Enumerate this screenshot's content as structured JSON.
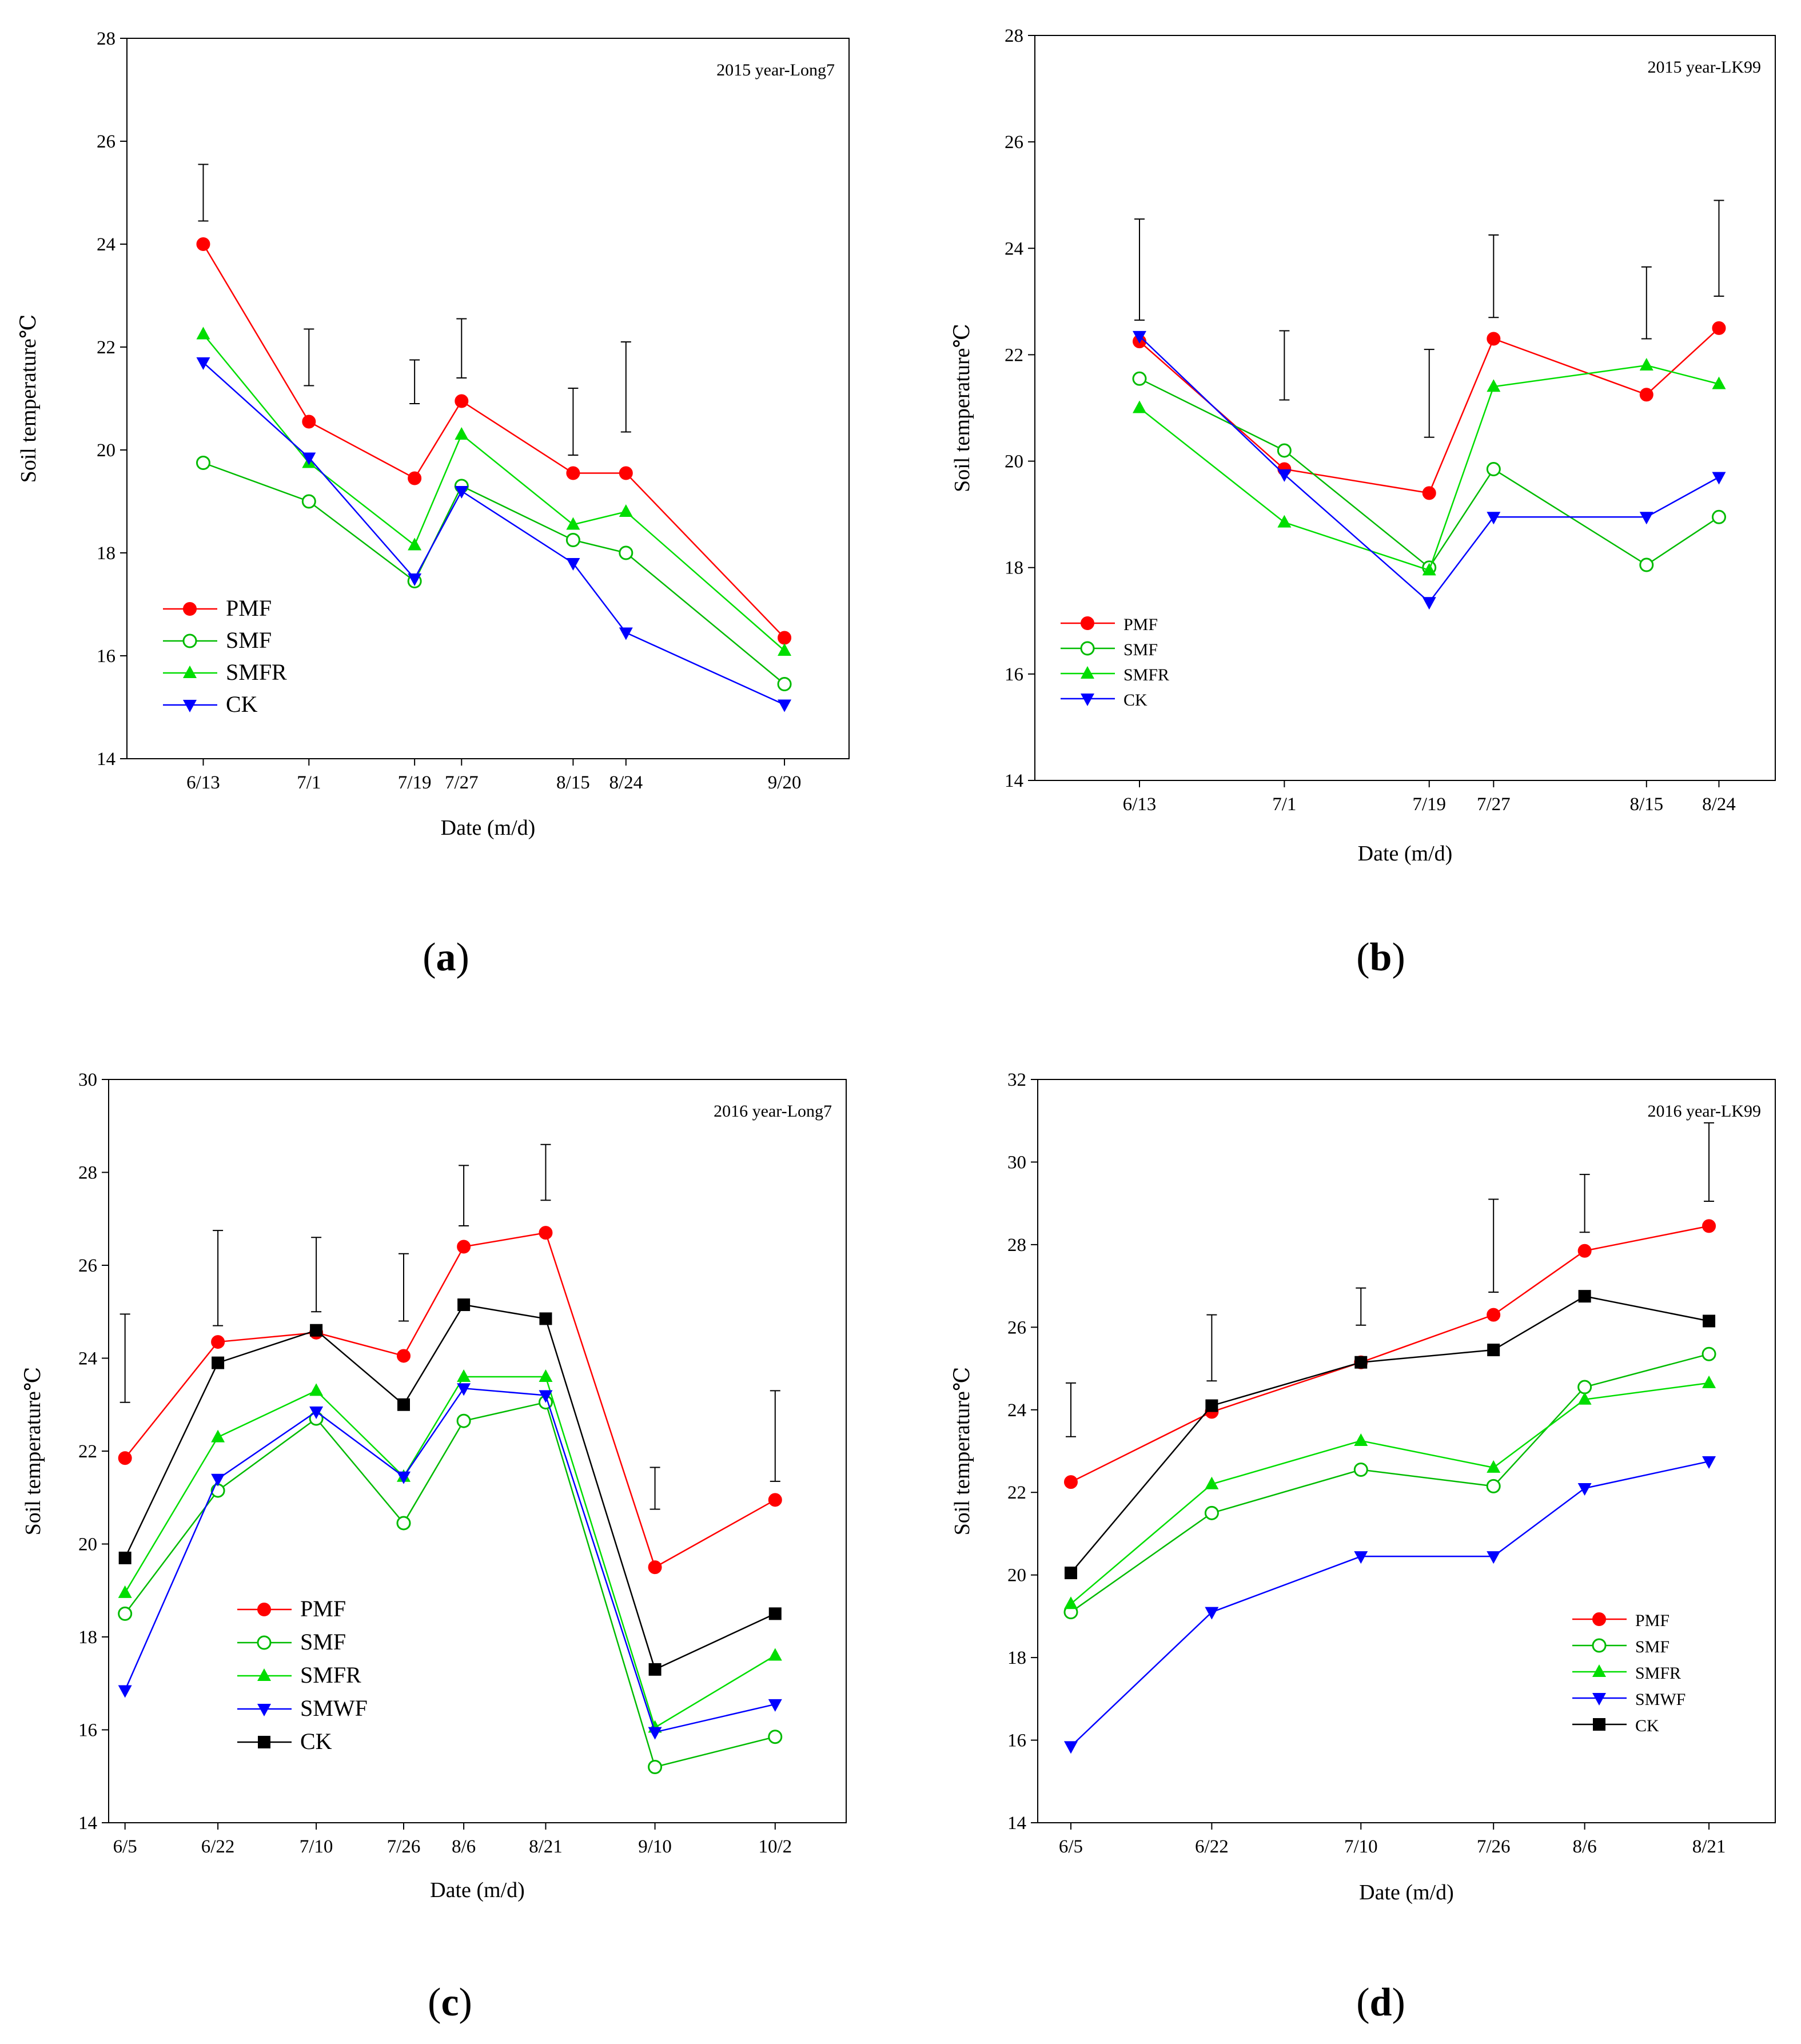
{
  "figure": {
    "panel_labels": [
      {
        "open": "(",
        "letter": "a",
        "close": ")"
      },
      {
        "open": "(",
        "letter": "b",
        "close": ")"
      },
      {
        "open": "(",
        "letter": "c",
        "close": ")"
      },
      {
        "open": "(",
        "letter": "d",
        "close": ")"
      }
    ]
  },
  "colors": {
    "PMF": "#ff0000",
    "SMF": "#00bb00",
    "SMFR": "#00dd00",
    "SMWF": "#0000ff",
    "CK_2015": "#0000ff",
    "CK_2016": "#000000"
  },
  "chart_data": [
    {
      "type": "line",
      "panel": "a",
      "annotation": "2015 year-Long7",
      "xlabel": "Date (m/d)",
      "ylabel": "Soil temperature℃",
      "ylim": [
        14,
        28
      ],
      "yticks": [
        14,
        16,
        18,
        20,
        22,
        24,
        26,
        28
      ],
      "x_days": [
        13,
        31,
        49,
        57,
        76,
        85,
        112
      ],
      "categories": [
        "6/13",
        "7/1",
        "7/19",
        "7/27",
        "8/15",
        "8/24",
        "9/20"
      ],
      "xlim_days": [
        0,
        123
      ],
      "legend_position": "bottom-left",
      "series": [
        {
          "name": "PMF",
          "marker": "circle-filled",
          "values": [
            24.0,
            20.55,
            19.45,
            20.95,
            19.55,
            19.55,
            16.35
          ]
        },
        {
          "name": "SMF",
          "marker": "circle-open",
          "values": [
            19.75,
            19.0,
            17.45,
            19.3,
            18.25,
            18.0,
            15.45
          ]
        },
        {
          "name": "SMFR",
          "marker": "triangle-up",
          "values": [
            22.25,
            19.75,
            18.15,
            20.3,
            18.55,
            18.8,
            16.1
          ]
        },
        {
          "name": "CK",
          "marker": "triangle-down",
          "values": [
            21.7,
            19.85,
            17.5,
            19.2,
            17.8,
            16.45,
            15.05
          ]
        }
      ],
      "error_bars": [
        {
          "x": 13,
          "low": 24.45,
          "high": 25.55
        },
        {
          "x": 31,
          "low": 21.25,
          "high": 22.35
        },
        {
          "x": 49,
          "low": 20.9,
          "high": 21.75
        },
        {
          "x": 57,
          "low": 21.4,
          "high": 22.55
        },
        {
          "x": 76,
          "low": 19.9,
          "high": 21.2
        },
        {
          "x": 85,
          "low": 20.35,
          "high": 22.1
        }
      ]
    },
    {
      "type": "line",
      "panel": "b",
      "annotation": "2015 year-LK99",
      "xlabel": "Date (m/d)",
      "ylabel": "Soil temperature℃",
      "ylim": [
        14,
        28
      ],
      "yticks": [
        14,
        16,
        18,
        20,
        22,
        24,
        26,
        28
      ],
      "x_days": [
        13,
        31,
        49,
        57,
        76,
        85
      ],
      "categories": [
        "6/13",
        "7/1",
        "7/19",
        "7/27",
        "8/15",
        "8/24"
      ],
      "xlim_days": [
        0,
        92
      ],
      "legend_position": "bottom-left",
      "series": [
        {
          "name": "PMF",
          "marker": "circle-filled",
          "values": [
            22.25,
            19.85,
            19.4,
            22.3,
            21.25,
            22.5
          ]
        },
        {
          "name": "SMF",
          "marker": "circle-open",
          "values": [
            21.55,
            20.2,
            18.0,
            19.85,
            18.05,
            18.95
          ]
        },
        {
          "name": "SMFR",
          "marker": "triangle-up",
          "values": [
            21.0,
            18.85,
            17.95,
            21.4,
            21.8,
            21.45
          ]
        },
        {
          "name": "CK",
          "marker": "triangle-down",
          "values": [
            22.35,
            19.75,
            17.35,
            18.95,
            18.95,
            19.7
          ]
        }
      ],
      "error_bars": [
        {
          "x": 13,
          "low": 22.65,
          "high": 24.55
        },
        {
          "x": 31,
          "low": 21.15,
          "high": 22.45
        },
        {
          "x": 49,
          "low": 20.45,
          "high": 22.1
        },
        {
          "x": 57,
          "low": 22.7,
          "high": 24.25
        },
        {
          "x": 76,
          "low": 22.3,
          "high": 23.65
        },
        {
          "x": 85,
          "low": 23.1,
          "high": 24.9
        }
      ]
    },
    {
      "type": "line",
      "panel": "c",
      "annotation": "2016 year-Long7",
      "xlabel": "Date (m/d)",
      "ylabel": "Soil temperature℃",
      "ylim": [
        14,
        30
      ],
      "yticks": [
        14,
        16,
        18,
        20,
        22,
        24,
        26,
        28,
        30
      ],
      "x_days": [
        5,
        22,
        40,
        56,
        67,
        82,
        102,
        124
      ],
      "categories": [
        "6/5",
        "6/22",
        "7/10",
        "7/26",
        "8/6",
        "8/21",
        "9/10",
        "10/2"
      ],
      "xlim_days": [
        2,
        137
      ],
      "legend_position": "lower-center",
      "series": [
        {
          "name": "PMF",
          "marker": "circle-filled",
          "values": [
            21.85,
            24.35,
            24.55,
            24.05,
            26.4,
            26.7,
            19.5,
            20.95
          ]
        },
        {
          "name": "SMF",
          "marker": "circle-open",
          "values": [
            18.5,
            21.15,
            22.7,
            20.45,
            22.65,
            23.05,
            15.2,
            15.85
          ]
        },
        {
          "name": "SMFR",
          "marker": "triangle-up",
          "values": [
            18.95,
            22.3,
            23.3,
            21.45,
            23.6,
            23.6,
            16.05,
            17.6
          ]
        },
        {
          "name": "SMWF",
          "marker": "triangle-down",
          "values": [
            16.85,
            21.4,
            22.85,
            21.45,
            23.35,
            23.2,
            15.95,
            16.55
          ]
        },
        {
          "name": "CK",
          "marker": "square-filled",
          "values": [
            19.7,
            23.9,
            24.6,
            23.0,
            25.15,
            24.85,
            17.3,
            18.5
          ]
        }
      ],
      "error_bars": [
        {
          "x": 5,
          "low": 23.05,
          "high": 24.95
        },
        {
          "x": 22,
          "low": 24.7,
          "high": 26.75
        },
        {
          "x": 40,
          "low": 25.0,
          "high": 26.6
        },
        {
          "x": 56,
          "low": 24.8,
          "high": 26.25
        },
        {
          "x": 67,
          "low": 26.85,
          "high": 28.15
        },
        {
          "x": 82,
          "low": 27.4,
          "high": 28.6
        },
        {
          "x": 102,
          "low": 20.75,
          "high": 21.65
        },
        {
          "x": 124,
          "low": 21.35,
          "high": 23.3
        }
      ]
    },
    {
      "type": "line",
      "panel": "d",
      "annotation": "2016 year-LK99",
      "xlabel": "Date (m/d)",
      "ylabel": "Soil temperature℃",
      "ylim": [
        14,
        32
      ],
      "yticks": [
        14,
        16,
        18,
        20,
        22,
        24,
        26,
        28,
        30,
        32
      ],
      "x_days": [
        5,
        22,
        40,
        56,
        67,
        82
      ],
      "categories": [
        "6/5",
        "6/22",
        "7/10",
        "7/26",
        "8/6",
        "8/21"
      ],
      "xlim_days": [
        1,
        90
      ],
      "legend_position": "bottom-right",
      "series": [
        {
          "name": "PMF",
          "marker": "circle-filled",
          "values": [
            22.25,
            23.95,
            25.15,
            26.3,
            27.85,
            28.45
          ]
        },
        {
          "name": "SMF",
          "marker": "circle-open",
          "values": [
            19.1,
            21.5,
            22.55,
            22.15,
            24.55,
            25.35
          ]
        },
        {
          "name": "SMFR",
          "marker": "triangle-up",
          "values": [
            19.3,
            22.2,
            23.25,
            22.6,
            24.25,
            24.65
          ]
        },
        {
          "name": "SMWF",
          "marker": "triangle-down",
          "values": [
            15.85,
            19.1,
            20.45,
            20.45,
            22.1,
            22.75
          ]
        },
        {
          "name": "CK",
          "marker": "square-filled",
          "values": [
            20.05,
            24.1,
            25.15,
            25.45,
            26.75,
            26.15
          ]
        }
      ],
      "error_bars": [
        {
          "x": 5,
          "low": 23.35,
          "high": 24.65
        },
        {
          "x": 22,
          "low": 24.7,
          "high": 26.3
        },
        {
          "x": 40,
          "low": 26.05,
          "high": 26.95
        },
        {
          "x": 56,
          "low": 26.85,
          "high": 29.1
        },
        {
          "x": 67,
          "low": 28.3,
          "high": 29.7
        },
        {
          "x": 82,
          "low": 29.05,
          "high": 30.95
        }
      ]
    }
  ]
}
